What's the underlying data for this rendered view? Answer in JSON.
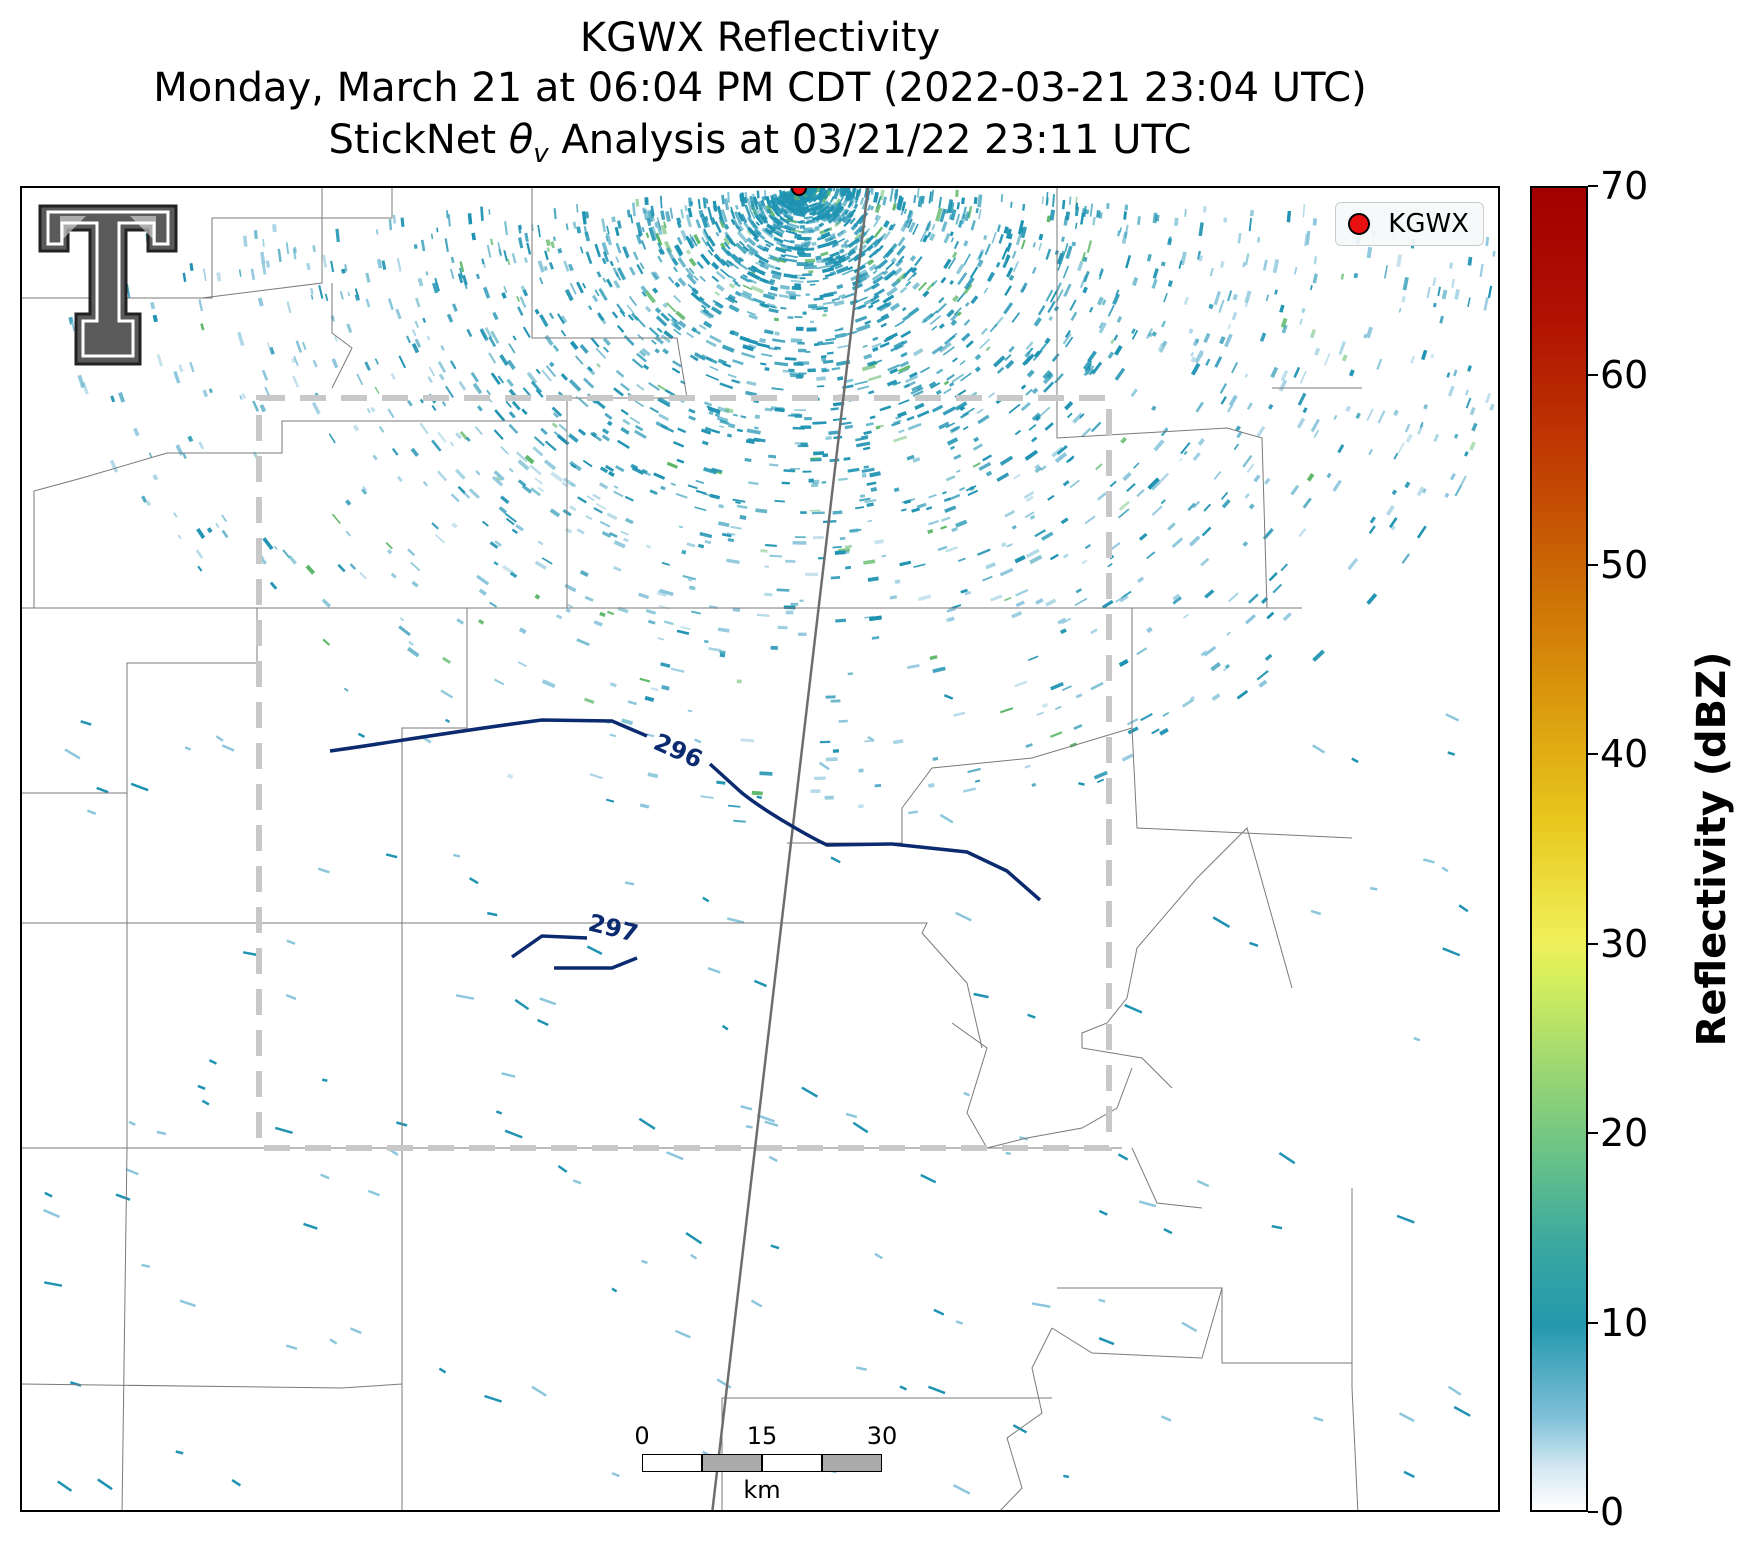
{
  "titles": {
    "line1": "KGWX Reflectivity",
    "line2": "Monday, March 21 at 06:04 PM CDT (2022-03-21 23:04 UTC)",
    "line3_prefix": "StickNet ",
    "line3_theta": "θ",
    "line3_sub": "v",
    "line3_suffix": " Analysis at 03/21/22 23:11 UTC"
  },
  "legend": {
    "label": "KGWX",
    "marker_color": "#e81010"
  },
  "radar_site": {
    "name": "KGWX"
  },
  "contours": [
    {
      "label": "296",
      "color": "#0b2a6f"
    },
    {
      "label": "297",
      "color": "#0b2a6f"
    }
  ],
  "scale_bar": {
    "ticks": [
      "0",
      "15",
      "30"
    ],
    "unit": "km"
  },
  "colorbar": {
    "label": "Reflectivity (dBZ)",
    "min": 0,
    "max": 70,
    "ticks": [
      "0",
      "10",
      "20",
      "30",
      "40",
      "50",
      "60",
      "70"
    ],
    "colors": {
      "low": "#ffffff",
      "mid_low": "#2398ad",
      "mid": "#f0f05a",
      "high": "#a20000"
    }
  },
  "colors": {
    "echo_main": "#1f93b2",
    "echo_light": "#8cc6dc",
    "echo_green": "#5fb86a",
    "boundary": "#7a7a7a",
    "analysis_box": "#c8c8c8"
  }
}
